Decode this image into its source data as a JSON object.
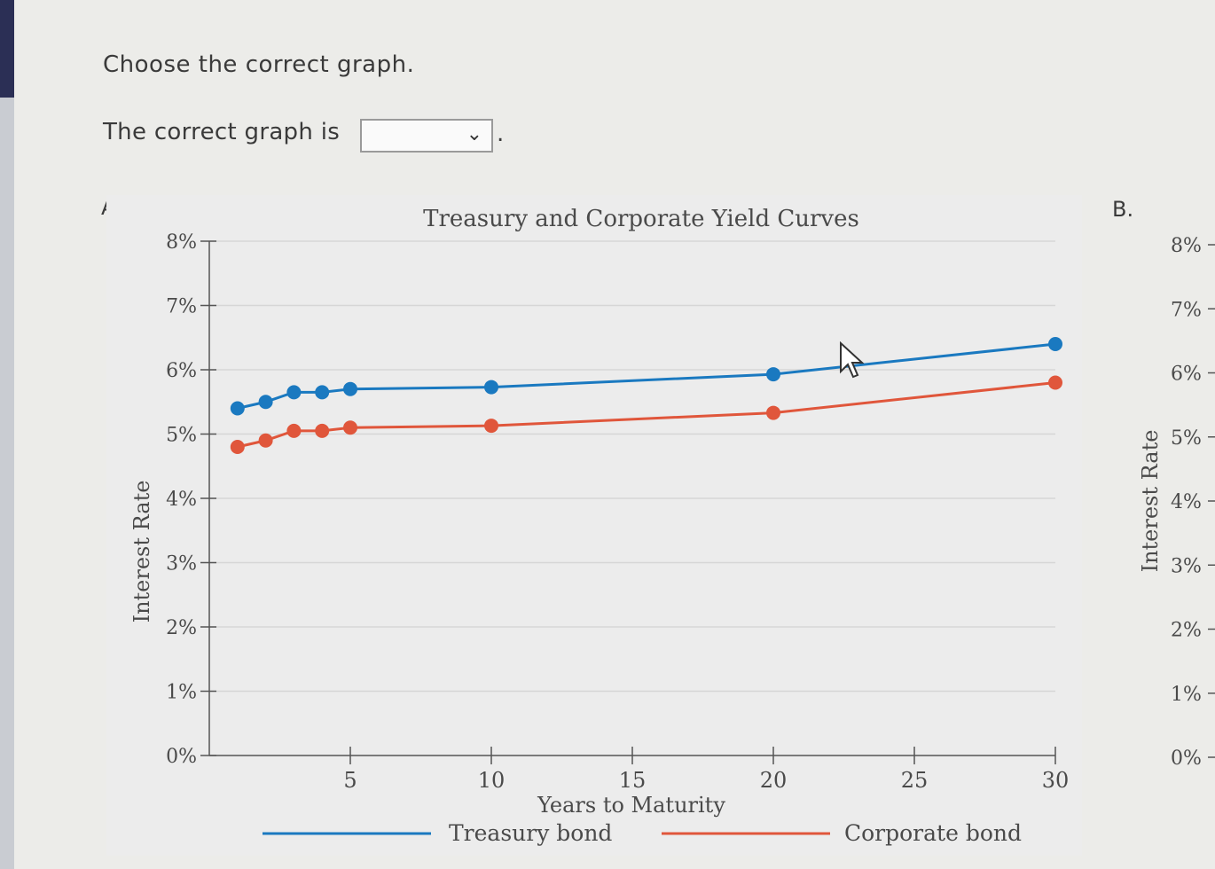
{
  "instruction": "Choose the correct graph.",
  "question": {
    "text": "The correct graph is",
    "selected": "",
    "period": "."
  },
  "options": [
    {
      "label": "A."
    },
    {
      "label": "B."
    }
  ],
  "colors": {
    "treasury": "#1a79c0",
    "corporate": "#e0563b",
    "axis": "#555555",
    "grid": "#d6d6d6"
  },
  "chart_data": [
    {
      "type": "line",
      "title": "Treasury and Corporate Yield Curves",
      "xlabel": "Years to Maturity",
      "ylabel": "Interest Rate",
      "xlim": [
        0,
        30
      ],
      "ylim": [
        0,
        8
      ],
      "x_ticks": [
        5,
        10,
        15,
        20,
        25,
        30
      ],
      "y_ticks": [
        0,
        1,
        2,
        3,
        4,
        5,
        6,
        7,
        8
      ],
      "y_tick_labels": [
        "0%",
        "1%",
        "2%",
        "3%",
        "4%",
        "5%",
        "6%",
        "7%",
        "8%"
      ],
      "grid": true,
      "legend": "bottom",
      "series": [
        {
          "name": "Treasury bond",
          "x": [
            1,
            2,
            3,
            4,
            5,
            10,
            20,
            30
          ],
          "y": [
            5.4,
            5.5,
            5.65,
            5.65,
            5.7,
            5.73,
            5.93,
            6.4
          ]
        },
        {
          "name": "Corporate bond",
          "x": [
            1,
            2,
            3,
            4,
            5,
            10,
            20,
            30
          ],
          "y": [
            4.8,
            4.9,
            5.05,
            5.05,
            5.1,
            5.13,
            5.33,
            5.8
          ]
        }
      ]
    },
    {
      "type": "line",
      "ylabel": "Interest Rate",
      "ylim": [
        0,
        8
      ],
      "y_ticks": [
        0,
        1,
        2,
        3,
        4,
        5,
        6,
        7,
        8
      ],
      "y_tick_labels": [
        "0%",
        "1%",
        "2%",
        "3%",
        "4%",
        "5%",
        "6%",
        "7%",
        "8%"
      ]
    }
  ]
}
